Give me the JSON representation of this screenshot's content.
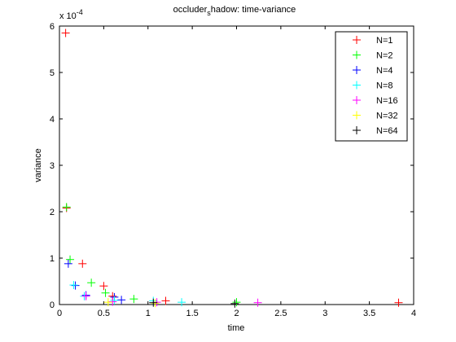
{
  "chart_data": {
    "type": "scatter",
    "title_main": "occluder",
    "title_sub": "s",
    "title_rest": "hadow: time-variance",
    "xlabel": "time",
    "ylabel": "variance",
    "xlim": [
      0,
      4
    ],
    "ylim": [
      0,
      6
    ],
    "exponent_label": {
      "base": "x 10",
      "power": "-4"
    },
    "xticks": [
      "0",
      "0.5",
      "1",
      "1.5",
      "2",
      "2.5",
      "3",
      "3.5",
      "4"
    ],
    "yticks": [
      "0",
      "1",
      "2",
      "3",
      "4",
      "5",
      "6"
    ],
    "legend_position": "top-right",
    "marker": "+",
    "series": [
      {
        "name": "N=1",
        "color": "#ff0000",
        "points": [
          [
            0.07,
            5.85
          ],
          [
            0.08,
            2.08
          ],
          [
            0.26,
            0.88
          ],
          [
            0.5,
            0.4
          ],
          [
            0.6,
            0.18
          ],
          [
            1.2,
            0.08
          ],
          [
            3.83,
            0.04
          ]
        ]
      },
      {
        "name": "N=2",
        "color": "#00ff00",
        "points": [
          [
            0.08,
            2.1
          ],
          [
            0.12,
            0.97
          ],
          [
            0.36,
            0.47
          ],
          [
            0.52,
            0.25
          ],
          [
            0.84,
            0.12
          ],
          [
            2.0,
            0.05
          ]
        ]
      },
      {
        "name": "N=4",
        "color": "#0000ff",
        "points": [
          [
            0.1,
            0.88
          ],
          [
            0.18,
            0.41
          ],
          [
            0.3,
            0.2
          ],
          [
            0.62,
            0.16
          ],
          [
            0.7,
            0.1
          ]
        ]
      },
      {
        "name": "N=8",
        "color": "#00ffff",
        "points": [
          [
            0.16,
            0.42
          ],
          [
            0.28,
            0.18
          ],
          [
            0.62,
            0.09
          ],
          [
            1.06,
            0.08
          ],
          [
            1.38,
            0.05
          ]
        ]
      },
      {
        "name": "N=16",
        "color": "#ff00ff",
        "points": [
          [
            0.3,
            0.18
          ],
          [
            0.6,
            0.06
          ],
          [
            1.1,
            0.05
          ],
          [
            2.24,
            0.04
          ]
        ]
      },
      {
        "name": "N=32",
        "color": "#ffff00",
        "points": [
          [
            0.55,
            0.05
          ],
          [
            1.08,
            0.03
          ]
        ]
      },
      {
        "name": "N=64",
        "color": "#000000",
        "points": [
          [
            1.06,
            0.04
          ],
          [
            1.98,
            0.02
          ]
        ]
      }
    ]
  }
}
